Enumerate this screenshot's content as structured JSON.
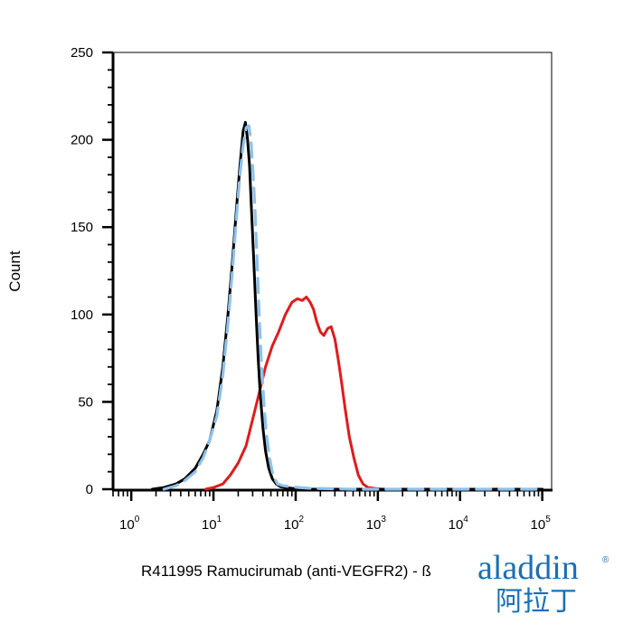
{
  "chart_data": {
    "type": "line",
    "title": "",
    "xlabel": "R411995 Ramucirumab (anti-VEGFR2) - ß",
    "ylabel": "Count",
    "x_scale": "log",
    "xlim": [
      0.6,
      130000
    ],
    "ylim": [
      0,
      250
    ],
    "y_ticks": [
      0,
      50,
      100,
      150,
      200,
      250
    ],
    "x_ticks": [
      {
        "base": "10",
        "exp": "0",
        "value": 1
      },
      {
        "base": "10",
        "exp": "1",
        "value": 10
      },
      {
        "base": "10",
        "exp": "2",
        "value": 100
      },
      {
        "base": "10",
        "exp": "3",
        "value": 1000
      },
      {
        "base": "10",
        "exp": "4",
        "value": 10000
      },
      {
        "base": "10",
        "exp": "5",
        "value": 100000
      }
    ],
    "grid": false,
    "legend": "none",
    "series": [
      {
        "color": "#000000",
        "style": "solid",
        "x": [
          1.8,
          2.5,
          3.5,
          4.5,
          6,
          7.5,
          9,
          11,
          13,
          15,
          17,
          19,
          21,
          23,
          24.5,
          26,
          27.5,
          29,
          31,
          33,
          35,
          37,
          40,
          43,
          47,
          52,
          58,
          65,
          75,
          90,
          110,
          140,
          200,
          400,
          1000,
          100000
        ],
        "y": [
          0,
          1,
          3,
          6,
          12,
          20,
          28,
          45,
          70,
          100,
          130,
          160,
          185,
          205,
          210,
          200,
          185,
          160,
          130,
          100,
          75,
          55,
          35,
          22,
          12,
          6,
          3,
          1.5,
          1,
          0.5,
          0.3,
          0,
          0,
          0,
          0,
          0
        ]
      },
      {
        "color": "#8fc1ea",
        "style": "dashed",
        "x": [
          2.5,
          3.5,
          4.5,
          6,
          7.5,
          9,
          11,
          13,
          15,
          17,
          19,
          21,
          23,
          25,
          27,
          28.5,
          30,
          32,
          34,
          36,
          38,
          41,
          44,
          48,
          53,
          60,
          70,
          85,
          110,
          150,
          250,
          500,
          1000,
          100000
        ],
        "y": [
          0,
          2,
          5,
          10,
          18,
          28,
          42,
          65,
          95,
          125,
          155,
          180,
          197,
          207,
          208,
          200,
          185,
          160,
          130,
          100,
          75,
          50,
          32,
          18,
          8,
          3,
          2,
          1.5,
          1,
          0.5,
          0.3,
          0,
          0,
          0
        ]
      },
      {
        "color": "#dd1c1c",
        "style": "solid",
        "x": [
          8,
          10,
          13,
          16,
          20,
          25,
          30,
          36,
          43,
          52,
          62,
          75,
          90,
          105,
          120,
          135,
          150,
          165,
          180,
          200,
          220,
          245,
          270,
          300,
          330,
          360,
          400,
          450,
          510,
          580,
          660,
          760,
          900,
          1100,
          1400,
          100000
        ],
        "y": [
          0,
          1,
          3,
          8,
          15,
          25,
          40,
          55,
          70,
          82,
          90,
          100,
          107,
          109,
          108,
          110,
          107,
          103,
          96,
          90,
          88,
          92,
          93,
          86,
          74,
          62,
          46,
          30,
          18,
          8,
          3,
          1,
          0.5,
          0,
          0,
          0
        ]
      }
    ]
  },
  "logo": {
    "latin": "aladdin",
    "cjk": "阿拉丁",
    "reg": "®"
  }
}
